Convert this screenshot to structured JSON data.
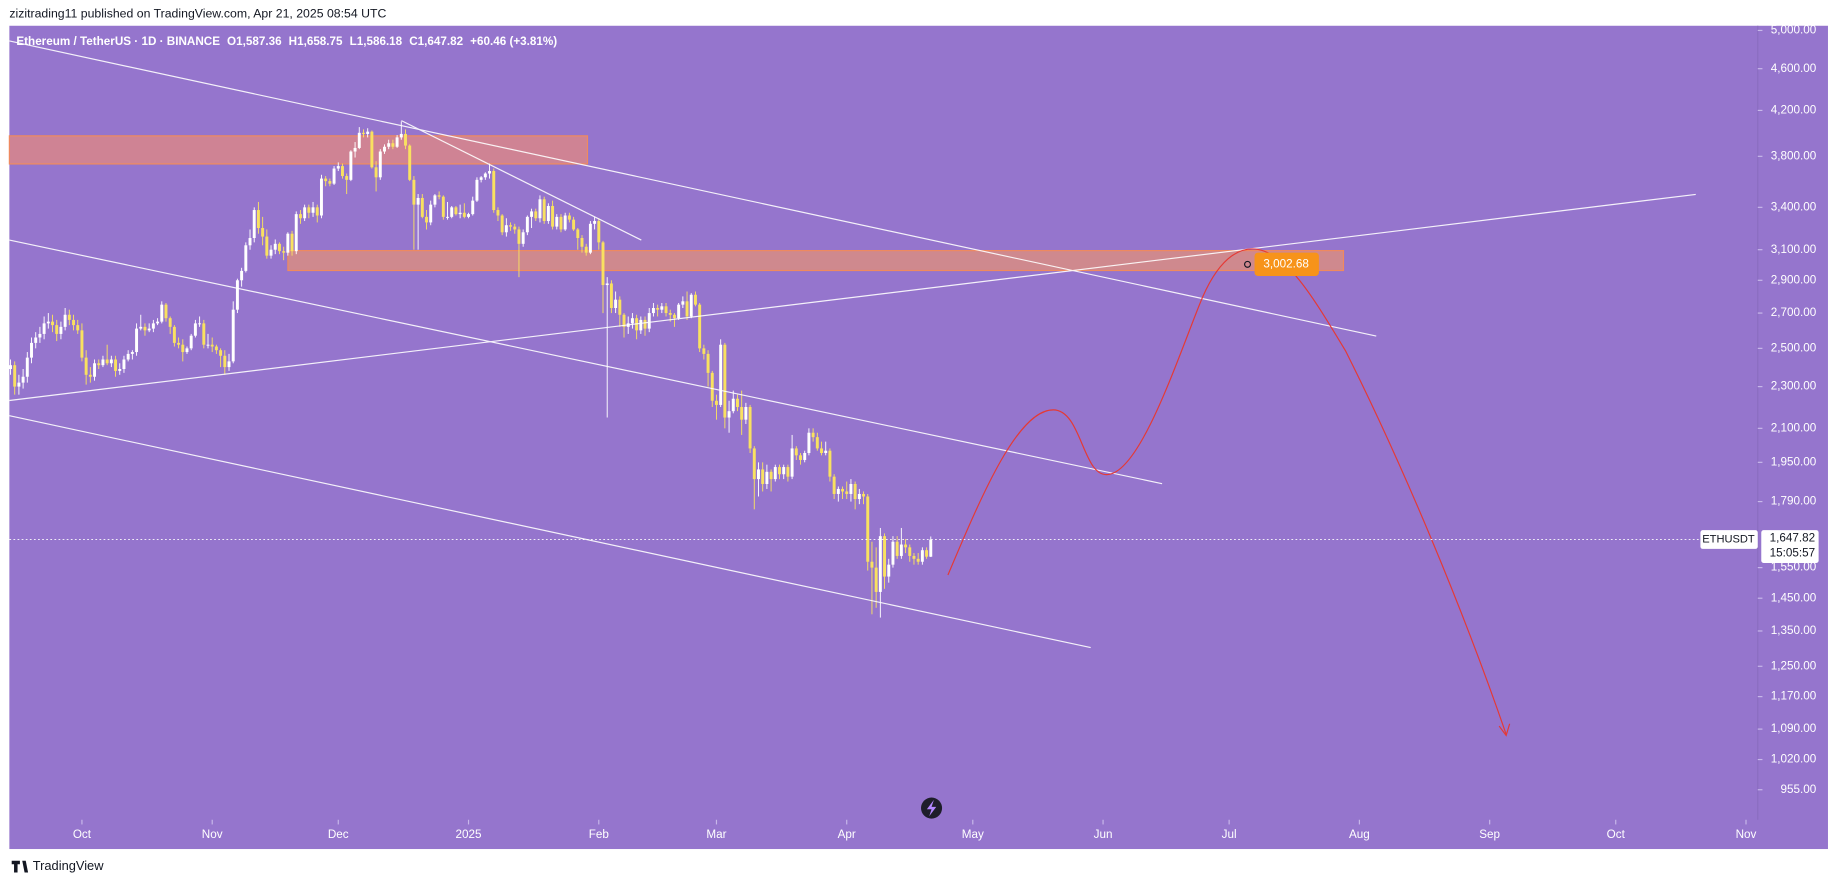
{
  "publisher_line": "zizitrading11 published on TradingView.com, Apr 21, 2025 08:54 UTC",
  "footer": "TradingView",
  "chart_data": {
    "type": "candlestick",
    "title": "Ethereum / TetherUS · 1D · BINANCE",
    "ohlc_header": [
      "O1,587.36",
      "H1,658.75",
      "L1,586.18",
      "C1,647.82",
      "+60.46 (+3.81%)"
    ],
    "log_scale": true,
    "grid": false,
    "up_color": "#ffffff",
    "down_color": "#f9e160",
    "xlim": [
      -0.27,
      415.8
    ],
    "xticks": [
      {
        "value": 17,
        "label": "Oct"
      },
      {
        "value": 48,
        "label": "Nov"
      },
      {
        "value": 78,
        "label": "Dec"
      },
      {
        "value": 109,
        "label": "2025"
      },
      {
        "value": 140,
        "label": "Feb"
      },
      {
        "value": 168,
        "label": "Mar"
      },
      {
        "value": 199,
        "label": "Apr"
      },
      {
        "value": 229,
        "label": "May"
      },
      {
        "value": 260,
        "label": "Jun"
      },
      {
        "value": 290,
        "label": "Jul"
      },
      {
        "value": 321,
        "label": "Aug"
      },
      {
        "value": 352,
        "label": "Sep"
      },
      {
        "value": 382,
        "label": "Oct"
      },
      {
        "value": 413,
        "label": "Nov"
      }
    ],
    "ylim": [
      894.5,
      5051.3
    ],
    "yticks": [
      {
        "value": 5000,
        "label": "5,000.00"
      },
      {
        "value": 4600,
        "label": "4,600.00"
      },
      {
        "value": 4200,
        "label": "4,200.00"
      },
      {
        "value": 3800,
        "label": "3,800.00"
      },
      {
        "value": 3400,
        "label": "3,400.00"
      },
      {
        "value": 3100,
        "label": "3,100.00"
      },
      {
        "value": 2900,
        "label": "2,900.00"
      },
      {
        "value": 2700,
        "label": "2,700.00"
      },
      {
        "value": 2500,
        "label": "2,500.00"
      },
      {
        "value": 2300,
        "label": "2,300.00"
      },
      {
        "value": 2100,
        "label": "2,100.00"
      },
      {
        "value": 1950,
        "label": "1,950.00"
      },
      {
        "value": 1790,
        "label": "1,790.00"
      },
      {
        "value": 1550,
        "label": "1,550.00"
      },
      {
        "value": 1450,
        "label": "1,450.00"
      },
      {
        "value": 1350,
        "label": "1,350.00"
      },
      {
        "value": 1250,
        "label": "1,250.00"
      },
      {
        "value": 1170,
        "label": "1,170.00"
      },
      {
        "value": 1090,
        "label": "1,090.00"
      },
      {
        "value": 1020,
        "label": "1,020.00"
      },
      {
        "value": 955,
        "label": "955.00"
      }
    ],
    "price_tag": {
      "symbol": "ETHUSDT",
      "value": 1647.82,
      "label": "1,647.82",
      "countdown": "15:05:57"
    },
    "target": {
      "value": 3002.68,
      "label": "3,002.68"
    },
    "ohlc": [
      [
        2390,
        2440,
        2360,
        2410
      ],
      [
        2410,
        2430,
        2260,
        2300
      ],
      [
        2300,
        2360,
        2260,
        2320
      ],
      [
        2320,
        2390,
        2290,
        2350
      ],
      [
        2350,
        2480,
        2320,
        2450
      ],
      [
        2450,
        2560,
        2420,
        2530
      ],
      [
        2530,
        2590,
        2500,
        2560
      ],
      [
        2560,
        2620,
        2530,
        2580
      ],
      [
        2580,
        2680,
        2550,
        2640
      ],
      [
        2640,
        2700,
        2610,
        2650
      ],
      [
        2650,
        2690,
        2590,
        2630
      ],
      [
        2630,
        2660,
        2540,
        2580
      ],
      [
        2580,
        2650,
        2550,
        2620
      ],
      [
        2620,
        2730,
        2600,
        2690
      ],
      [
        2690,
        2720,
        2630,
        2660
      ],
      [
        2660,
        2690,
        2600,
        2630
      ],
      [
        2630,
        2660,
        2580,
        2600
      ],
      [
        2600,
        2640,
        2430,
        2450
      ],
      [
        2450,
        2490,
        2310,
        2360
      ],
      [
        2360,
        2400,
        2320,
        2350
      ],
      [
        2350,
        2440,
        2330,
        2420
      ],
      [
        2420,
        2440,
        2390,
        2410
      ],
      [
        2410,
        2460,
        2400,
        2440
      ],
      [
        2440,
        2520,
        2410,
        2420
      ],
      [
        2420,
        2460,
        2400,
        2440
      ],
      [
        2440,
        2460,
        2350,
        2380
      ],
      [
        2380,
        2420,
        2360,
        2390
      ],
      [
        2390,
        2460,
        2370,
        2440
      ],
      [
        2440,
        2490,
        2430,
        2470
      ],
      [
        2470,
        2490,
        2440,
        2480
      ],
      [
        2480,
        2640,
        2460,
        2610
      ],
      [
        2610,
        2690,
        2600,
        2620
      ],
      [
        2620,
        2640,
        2570,
        2600
      ],
      [
        2600,
        2640,
        2590,
        2610
      ],
      [
        2610,
        2660,
        2590,
        2640
      ],
      [
        2640,
        2670,
        2630,
        2650
      ],
      [
        2650,
        2770,
        2640,
        2750
      ],
      [
        2750,
        2760,
        2650,
        2670
      ],
      [
        2670,
        2680,
        2580,
        2620
      ],
      [
        2620,
        2630,
        2510,
        2530
      ],
      [
        2530,
        2560,
        2500,
        2520
      ],
      [
        2520,
        2550,
        2430,
        2480
      ],
      [
        2480,
        2510,
        2470,
        2500
      ],
      [
        2500,
        2580,
        2490,
        2570
      ],
      [
        2570,
        2660,
        2560,
        2640
      ],
      [
        2640,
        2680,
        2620,
        2640
      ],
      [
        2640,
        2660,
        2500,
        2520
      ],
      [
        2520,
        2580,
        2500,
        2520
      ],
      [
        2520,
        2560,
        2480,
        2510
      ],
      [
        2510,
        2520,
        2470,
        2490
      ],
      [
        2490,
        2500,
        2400,
        2460
      ],
      [
        2460,
        2490,
        2360,
        2400
      ],
      [
        2400,
        2470,
        2380,
        2430
      ],
      [
        2430,
        2770,
        2420,
        2720
      ],
      [
        2720,
        2910,
        2700,
        2900
      ],
      [
        2900,
        2980,
        2860,
        2960
      ],
      [
        2960,
        3150,
        2950,
        3130
      ],
      [
        3130,
        3240,
        3100,
        3180
      ],
      [
        3180,
        3400,
        3150,
        3380
      ],
      [
        3380,
        3440,
        3210,
        3250
      ],
      [
        3250,
        3330,
        3130,
        3190
      ],
      [
        3190,
        3240,
        3040,
        3060
      ],
      [
        3060,
        3130,
        3040,
        3100
      ],
      [
        3100,
        3170,
        3070,
        3140
      ],
      [
        3140,
        3150,
        3070,
        3090
      ],
      [
        3090,
        3120,
        3030,
        3080
      ],
      [
        3080,
        3220,
        3060,
        3210
      ],
      [
        3210,
        3230,
        3060,
        3090
      ],
      [
        3090,
        3370,
        3070,
        3350
      ],
      [
        3350,
        3380,
        3280,
        3320
      ],
      [
        3320,
        3420,
        3300,
        3400
      ],
      [
        3400,
        3420,
        3320,
        3360
      ],
      [
        3360,
        3440,
        3330,
        3400
      ],
      [
        3400,
        3420,
        3290,
        3340
      ],
      [
        3340,
        3650,
        3320,
        3620
      ],
      [
        3620,
        3640,
        3560,
        3600
      ],
      [
        3600,
        3620,
        3560,
        3580
      ],
      [
        3580,
        3720,
        3570,
        3700
      ],
      [
        3700,
        3750,
        3680,
        3720
      ],
      [
        3720,
        3740,
        3620,
        3640
      ],
      [
        3640,
        3660,
        3500,
        3610
      ],
      [
        3610,
        3850,
        3600,
        3840
      ],
      [
        3840,
        3920,
        3790,
        3870
      ],
      [
        3870,
        4050,
        3860,
        4000
      ],
      [
        4000,
        4030,
        3960,
        3990
      ],
      [
        3990,
        4040,
        3960,
        4010
      ],
      [
        4010,
        4020,
        3700,
        3710
      ],
      [
        3710,
        3760,
        3520,
        3630
      ],
      [
        3630,
        3860,
        3610,
        3840
      ],
      [
        3840,
        3900,
        3820,
        3880
      ],
      [
        3880,
        3940,
        3860,
        3910
      ],
      [
        3910,
        3940,
        3860,
        3880
      ],
      [
        3880,
        3980,
        3870,
        3960
      ],
      [
        3960,
        4100,
        3940,
        3990
      ],
      [
        3990,
        4030,
        3860,
        3890
      ],
      [
        3890,
        3900,
        3600,
        3610
      ],
      [
        3610,
        3640,
        3100,
        3420
      ],
      [
        3420,
        3500,
        3100,
        3470
      ],
      [
        3470,
        3500,
        3320,
        3330
      ],
      [
        3330,
        3380,
        3240,
        3290
      ],
      [
        3290,
        3450,
        3270,
        3420
      ],
      [
        3420,
        3500,
        3400,
        3490
      ],
      [
        3490,
        3520,
        3460,
        3480
      ],
      [
        3480,
        3490,
        3310,
        3330
      ],
      [
        3330,
        3440,
        3310,
        3330
      ],
      [
        3330,
        3410,
        3320,
        3400
      ],
      [
        3400,
        3410,
        3340,
        3350
      ],
      [
        3350,
        3420,
        3320,
        3360
      ],
      [
        3360,
        3430,
        3320,
        3330
      ],
      [
        3330,
        3360,
        3320,
        3350
      ],
      [
        3350,
        3480,
        3340,
        3450
      ],
      [
        3450,
        3630,
        3440,
        3610
      ],
      [
        3610,
        3640,
        3590,
        3630
      ],
      [
        3630,
        3670,
        3610,
        3660
      ],
      [
        3660,
        3740,
        3620,
        3680
      ],
      [
        3680,
        3700,
        3360,
        3380
      ],
      [
        3380,
        3400,
        3300,
        3340
      ],
      [
        3340,
        3350,
        3200,
        3220
      ],
      [
        3220,
        3320,
        3190,
        3270
      ],
      [
        3270,
        3290,
        3230,
        3260
      ],
      [
        3260,
        3280,
        3210,
        3240
      ],
      [
        3240,
        3260,
        2920,
        3140
      ],
      [
        3140,
        3240,
        3120,
        3220
      ],
      [
        3220,
        3340,
        3200,
        3330
      ],
      [
        3330,
        3390,
        3250,
        3370
      ],
      [
        3370,
        3390,
        3300,
        3320
      ],
      [
        3320,
        3490,
        3290,
        3460
      ],
      [
        3460,
        3480,
        3280,
        3300
      ],
      [
        3300,
        3430,
        3280,
        3410
      ],
      [
        3410,
        3450,
        3240,
        3260
      ],
      [
        3260,
        3350,
        3240,
        3330
      ],
      [
        3330,
        3350,
        3220,
        3240
      ],
      [
        3240,
        3360,
        3230,
        3340
      ],
      [
        3340,
        3360,
        3290,
        3310
      ],
      [
        3310,
        3330,
        3230,
        3240
      ],
      [
        3240,
        3250,
        3100,
        3180
      ],
      [
        3180,
        3200,
        3080,
        3120
      ],
      [
        3120,
        3140,
        3060,
        3080
      ],
      [
        3080,
        3300,
        3070,
        3280
      ],
      [
        3280,
        3330,
        3240,
        3300
      ],
      [
        3300,
        3320,
        3100,
        3150
      ],
      [
        3150,
        3160,
        2700,
        2870
      ],
      [
        2870,
        2920,
        2150,
        2880
      ],
      [
        2880,
        2900,
        2700,
        2730
      ],
      [
        2730,
        2830,
        2700,
        2780
      ],
      [
        2780,
        2800,
        2620,
        2690
      ],
      [
        2690,
        2700,
        2560,
        2620
      ],
      [
        2620,
        2680,
        2580,
        2640
      ],
      [
        2640,
        2700,
        2610,
        2670
      ],
      [
        2670,
        2690,
        2550,
        2600
      ],
      [
        2600,
        2680,
        2580,
        2660
      ],
      [
        2660,
        2680,
        2570,
        2610
      ],
      [
        2610,
        2730,
        2590,
        2700
      ],
      [
        2700,
        2760,
        2680,
        2730
      ],
      [
        2730,
        2750,
        2680,
        2720
      ],
      [
        2720,
        2760,
        2700,
        2740
      ],
      [
        2740,
        2760,
        2680,
        2700
      ],
      [
        2700,
        2720,
        2650,
        2690
      ],
      [
        2690,
        2700,
        2620,
        2670
      ],
      [
        2670,
        2760,
        2660,
        2750
      ],
      [
        2750,
        2800,
        2730,
        2770
      ],
      [
        2770,
        2830,
        2660,
        2680
      ],
      [
        2680,
        2820,
        2670,
        2810
      ],
      [
        2810,
        2830,
        2740,
        2750
      ],
      [
        2750,
        2760,
        2480,
        2500
      ],
      [
        2500,
        2520,
        2440,
        2470
      ],
      [
        2470,
        2490,
        2300,
        2370
      ],
      [
        2370,
        2380,
        2200,
        2230
      ],
      [
        2230,
        2260,
        2140,
        2210
      ],
      [
        2210,
        2550,
        2200,
        2520
      ],
      [
        2520,
        2530,
        2100,
        2150
      ],
      [
        2150,
        2230,
        2080,
        2180
      ],
      [
        2180,
        2280,
        2170,
        2240
      ],
      [
        2240,
        2260,
        2180,
        2200
      ],
      [
        2200,
        2280,
        2070,
        2140
      ],
      [
        2140,
        2220,
        2120,
        2200
      ],
      [
        2200,
        2210,
        1990,
        2010
      ],
      [
        2010,
        2020,
        1760,
        1880
      ],
      [
        1880,
        1950,
        1810,
        1920
      ],
      [
        1920,
        1950,
        1830,
        1860
      ],
      [
        1860,
        1940,
        1840,
        1910
      ],
      [
        1910,
        1920,
        1830,
        1880
      ],
      [
        1880,
        1940,
        1870,
        1930
      ],
      [
        1930,
        1940,
        1880,
        1900
      ],
      [
        1900,
        1940,
        1880,
        1930
      ],
      [
        1930,
        1940,
        1870,
        1890
      ],
      [
        1890,
        2070,
        1880,
        2010
      ],
      [
        2010,
        2020,
        1960,
        1980
      ],
      [
        1980,
        1990,
        1940,
        1960
      ],
      [
        1960,
        2000,
        1950,
        1990
      ],
      [
        1990,
        2100,
        1980,
        2080
      ],
      [
        2080,
        2100,
        2040,
        2060
      ],
      [
        2060,
        2080,
        2000,
        2010
      ],
      [
        2010,
        2040,
        1980,
        1990
      ],
      [
        1990,
        2040,
        1980,
        2000
      ],
      [
        2000,
        2010,
        1870,
        1890
      ],
      [
        1890,
        1900,
        1800,
        1820
      ],
      [
        1820,
        1850,
        1790,
        1840
      ],
      [
        1840,
        1850,
        1800,
        1830
      ],
      [
        1830,
        1870,
        1800,
        1820
      ],
      [
        1820,
        1880,
        1790,
        1860
      ],
      [
        1860,
        1870,
        1760,
        1800
      ],
      [
        1800,
        1840,
        1780,
        1820
      ],
      [
        1820,
        1830,
        1780,
        1810
      ],
      [
        1810,
        1820,
        1540,
        1570
      ],
      [
        1570,
        1640,
        1400,
        1550
      ],
      [
        1550,
        1620,
        1420,
        1470
      ],
      [
        1470,
        1690,
        1390,
        1660
      ],
      [
        1660,
        1670,
        1480,
        1520
      ],
      [
        1520,
        1580,
        1500,
        1560
      ],
      [
        1560,
        1660,
        1550,
        1640
      ],
      [
        1640,
        1660,
        1580,
        1590
      ],
      [
        1590,
        1690,
        1580,
        1630
      ],
      [
        1630,
        1650,
        1600,
        1620
      ],
      [
        1620,
        1630,
        1570,
        1590
      ],
      [
        1590,
        1600,
        1560,
        1580
      ],
      [
        1580,
        1600,
        1560,
        1570
      ],
      [
        1570,
        1620,
        1560,
        1610
      ],
      [
        1610,
        1620,
        1580,
        1587.36
      ],
      [
        1587.36,
        1658.75,
        1586.18,
        1647.82
      ]
    ]
  }
}
